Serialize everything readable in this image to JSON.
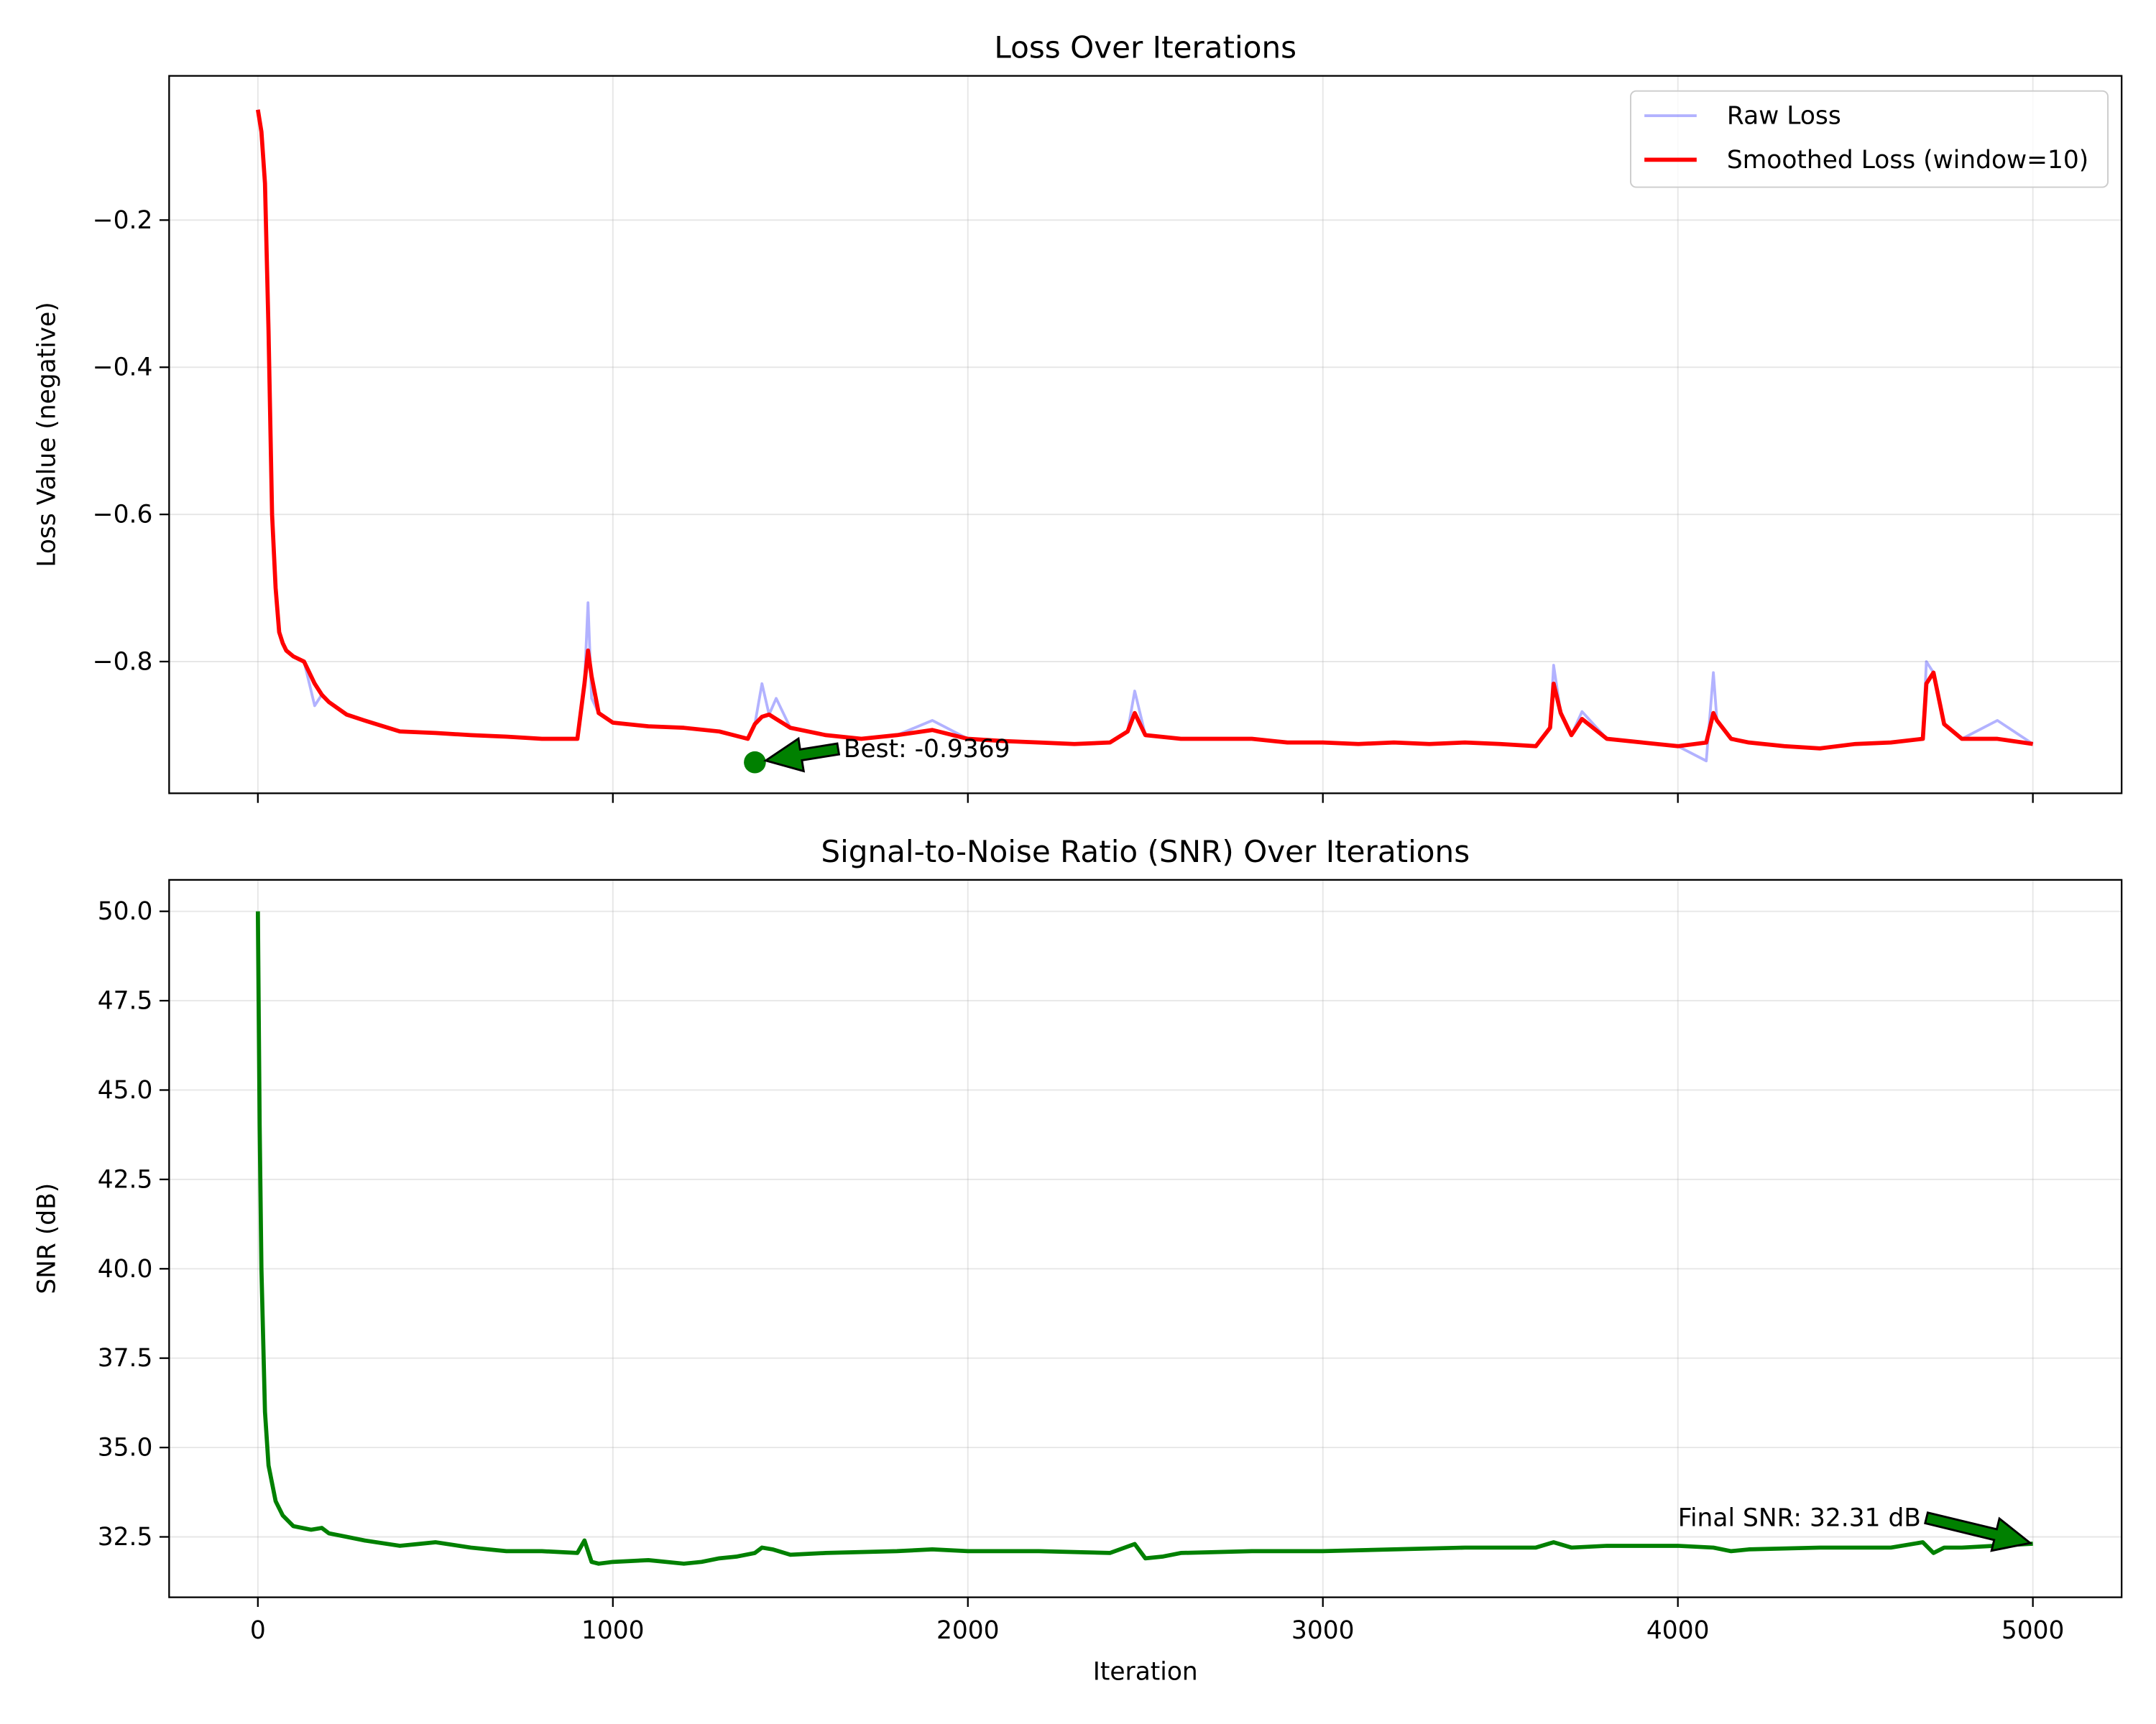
{
  "chart_data": [
    {
      "type": "line",
      "title": "Loss Over Iterations",
      "y_label": "Loss Value (negative)",
      "x": [
        0,
        10,
        20,
        30,
        40,
        50,
        60,
        70,
        80,
        100,
        130,
        160,
        180,
        200,
        250,
        300,
        400,
        500,
        600,
        700,
        800,
        900,
        920,
        930,
        940,
        960,
        1000,
        1100,
        1200,
        1300,
        1380,
        1400,
        1420,
        1440,
        1460,
        1500,
        1600,
        1700,
        1800,
        1900,
        2000,
        2100,
        2200,
        2300,
        2400,
        2450,
        2470,
        2500,
        2600,
        2700,
        2800,
        2900,
        3000,
        3100,
        3200,
        3300,
        3400,
        3500,
        3600,
        3640,
        3650,
        3670,
        3700,
        3730,
        3800,
        3900,
        4000,
        4080,
        4100,
        4110,
        4150,
        4200,
        4300,
        4400,
        4500,
        4600,
        4690,
        4700,
        4720,
        4750,
        4800,
        4900,
        5000
      ],
      "series": [
        {
          "name": "Raw Loss",
          "color": "#0000ff",
          "opacity": 0.3,
          "width": 2,
          "values": [
            -0.05,
            -0.08,
            -0.15,
            -0.35,
            -0.6,
            -0.7,
            -0.76,
            -0.775,
            -0.785,
            -0.793,
            -0.8,
            -0.86,
            -0.845,
            -0.855,
            -0.872,
            -0.88,
            -0.895,
            -0.897,
            -0.9,
            -0.902,
            -0.905,
            -0.905,
            -0.83,
            -0.72,
            -0.85,
            -0.87,
            -0.883,
            -0.888,
            -0.89,
            -0.895,
            -0.905,
            -0.885,
            -0.83,
            -0.872,
            -0.85,
            -0.89,
            -0.9,
            -0.905,
            -0.9,
            -0.88,
            -0.905,
            -0.908,
            -0.91,
            -0.912,
            -0.91,
            -0.895,
            -0.84,
            -0.9,
            -0.905,
            -0.905,
            -0.905,
            -0.91,
            -0.91,
            -0.912,
            -0.91,
            -0.912,
            -0.91,
            -0.912,
            -0.915,
            -0.89,
            -0.805,
            -0.87,
            -0.9,
            -0.868,
            -0.905,
            -0.91,
            -0.915,
            -0.935,
            -0.815,
            -0.88,
            -0.905,
            -0.91,
            -0.915,
            -0.918,
            -0.912,
            -0.91,
            -0.905,
            -0.8,
            -0.815,
            -0.885,
            -0.905,
            -0.88,
            -0.912
          ]
        },
        {
          "name": "Smoothed Loss (window=10)",
          "color": "#ff0000",
          "opacity": 1,
          "width": 3,
          "values": [
            -0.05,
            -0.08,
            -0.15,
            -0.35,
            -0.6,
            -0.7,
            -0.76,
            -0.775,
            -0.785,
            -0.793,
            -0.8,
            -0.83,
            -0.845,
            -0.855,
            -0.872,
            -0.88,
            -0.895,
            -0.897,
            -0.9,
            -0.902,
            -0.905,
            -0.905,
            -0.83,
            -0.785,
            -0.82,
            -0.87,
            -0.883,
            -0.888,
            -0.89,
            -0.895,
            -0.905,
            -0.885,
            -0.875,
            -0.872,
            -0.878,
            -0.89,
            -0.9,
            -0.905,
            -0.9,
            -0.893,
            -0.905,
            -0.908,
            -0.91,
            -0.912,
            -0.91,
            -0.895,
            -0.87,
            -0.9,
            -0.905,
            -0.905,
            -0.905,
            -0.91,
            -0.91,
            -0.912,
            -0.91,
            -0.912,
            -0.91,
            -0.912,
            -0.915,
            -0.89,
            -0.83,
            -0.87,
            -0.9,
            -0.878,
            -0.905,
            -0.91,
            -0.915,
            -0.91,
            -0.87,
            -0.88,
            -0.905,
            -0.91,
            -0.915,
            -0.918,
            -0.912,
            -0.91,
            -0.905,
            -0.83,
            -0.815,
            -0.885,
            -0.905,
            -0.905,
            -0.912
          ]
        }
      ],
      "xlim": [
        -250,
        5250
      ],
      "ylim": [
        -0.979,
        -0.004
      ],
      "xticks": [
        0,
        1000,
        2000,
        3000,
        4000,
        5000
      ],
      "xtick_labels": false,
      "yticks": [
        {
          "value": -0.8,
          "label": "−0.8"
        },
        {
          "value": -0.6,
          "label": "−0.6"
        },
        {
          "value": -0.4,
          "label": "−0.4"
        },
        {
          "value": -0.2,
          "label": "−0.2"
        }
      ],
      "grid": true,
      "legend": "upper right",
      "annotations": [
        {
          "text": "Best: -0.9369",
          "xy": [
            1400,
            -0.9369
          ],
          "xytext": [
            1650,
            -0.93
          ],
          "color": "green",
          "marker": true
        }
      ]
    },
    {
      "type": "line",
      "title": "Signal-to-Noise Ratio (SNR) Over Iterations",
      "x_label": "Iteration",
      "y_label": "SNR (dB)",
      "x": [
        0,
        5,
        10,
        20,
        30,
        50,
        70,
        100,
        150,
        180,
        200,
        250,
        300,
        400,
        450,
        500,
        600,
        700,
        800,
        900,
        920,
        940,
        960,
        1000,
        1100,
        1200,
        1250,
        1300,
        1350,
        1400,
        1420,
        1450,
        1500,
        1600,
        1800,
        1900,
        2000,
        2200,
        2400,
        2470,
        2500,
        2550,
        2600,
        2800,
        3000,
        3200,
        3400,
        3600,
        3650,
        3700,
        3800,
        4000,
        4100,
        4150,
        4200,
        4400,
        4600,
        4690,
        4720,
        4750,
        4800,
        5000
      ],
      "series": [
        {
          "name": "SNR",
          "color": "#008000",
          "opacity": 1,
          "width": 3,
          "values": [
            50,
            44,
            40,
            36,
            34.5,
            33.5,
            33.1,
            32.8,
            32.7,
            32.75,
            32.6,
            32.5,
            32.4,
            32.25,
            32.3,
            32.35,
            32.2,
            32.1,
            32.1,
            32.05,
            32.4,
            31.8,
            31.75,
            31.8,
            31.85,
            31.75,
            31.8,
            31.9,
            31.95,
            32.05,
            32.2,
            32.15,
            32.0,
            32.05,
            32.1,
            32.15,
            32.1,
            32.1,
            32.05,
            32.3,
            31.9,
            31.95,
            32.05,
            32.1,
            32.1,
            32.15,
            32.2,
            32.2,
            32.35,
            32.2,
            32.25,
            32.25,
            32.2,
            32.1,
            32.15,
            32.2,
            32.2,
            32.35,
            32.05,
            32.2,
            32.2,
            32.31
          ]
        }
      ],
      "xlim": [
        -250,
        5250
      ],
      "ylim": [
        30.81,
        50.88
      ],
      "xticks": [
        0,
        1000,
        2000,
        3000,
        4000,
        5000
      ],
      "yticks": [
        32.5,
        {
          "value": 35,
          "label": "35.0"
        },
        37.5,
        {
          "value": 40,
          "label": "40.0"
        },
        42.5,
        {
          "value": 45,
          "label": "45.0"
        },
        47.5,
        {
          "value": 50,
          "label": "50.0"
        }
      ],
      "grid": true,
      "annotations": [
        {
          "text": "Final SNR: 32.31 dB",
          "xy": [
            5000,
            32.31
          ],
          "xytext": [
            4000,
            32.8
          ],
          "color": "green"
        }
      ]
    }
  ]
}
